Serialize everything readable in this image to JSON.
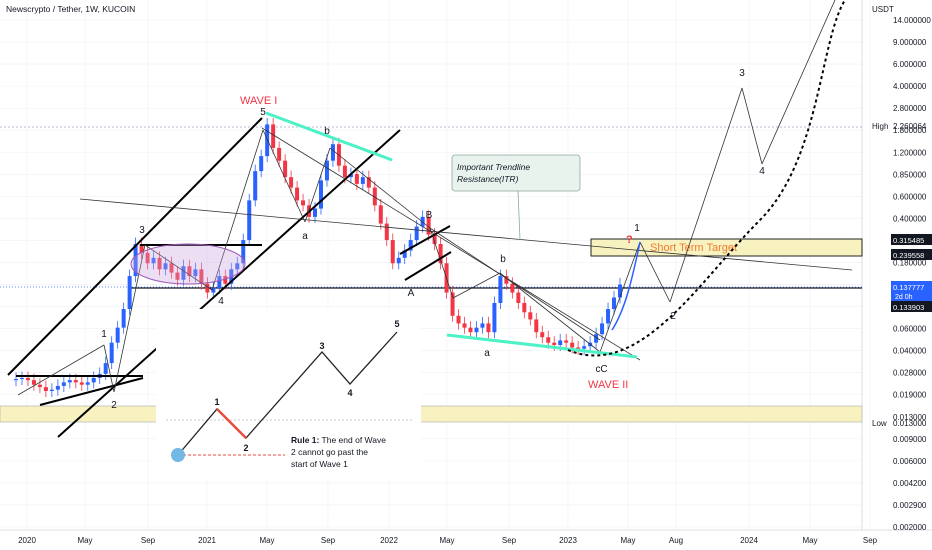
{
  "header": {
    "title": "Newscrypto / Tether, 1W, KUCOIN"
  },
  "colors": {
    "up": "#2962ff",
    "down": "#f23645",
    "accent_green": "#4cf2c6",
    "wave_red": "#f23645",
    "target_fill": "#f7f2c0",
    "target_border": "#222222",
    "price_tag_blue": "#2962ff",
    "dark_tag": "#131722",
    "itr_box": "#e9f3ee"
  },
  "axis": {
    "currency": "USDT",
    "scale": "log",
    "y_ticks": [
      "14.000000",
      "9.000000",
      "6.000000",
      "4.000000",
      "2.800000",
      "1.800000",
      "1.200000",
      "0.850000",
      "0.600000",
      "0.400000",
      "0.270000",
      "0.180000",
      "0.120000",
      "0.085000",
      "0.060000",
      "0.040000",
      "0.028000",
      "0.019000",
      "0.013000",
      "0.009000",
      "0.006000",
      "0.004200",
      "0.002900",
      "0.002000"
    ],
    "x_ticks": [
      "2020",
      "May",
      "Sep",
      "2021",
      "May",
      "Sep",
      "2022",
      "May",
      "Sep",
      "2023",
      "May",
      "Aug",
      "2024",
      "May",
      "Sep"
    ]
  },
  "price_tags": [
    {
      "label": "",
      "value": "0.315485",
      "style": "dark"
    },
    {
      "label": "",
      "value": "0.239558",
      "style": "dark"
    },
    {
      "label": "",
      "value": "0.137777",
      "sub": "2d 0h",
      "style": "blue"
    },
    {
      "label": "",
      "value": "0.133903",
      "style": "dark"
    },
    {
      "label": "High",
      "value": "2.260064",
      "style": "plain"
    },
    {
      "label": "Low",
      "value": "0.013000",
      "style": "plain"
    }
  ],
  "annotations": {
    "wave1_title": "WAVE I",
    "wave2_title": "WAVE II",
    "itr_text": "Important Trendline\nResistance(ITR)",
    "target_text": "Short Term Target",
    "question_mark": "?",
    "wave_labels": [
      "1",
      "2",
      "3",
      "4",
      "5",
      "a",
      "b",
      "A",
      "B",
      "a",
      "b",
      "c",
      "C",
      "1",
      "2",
      "3",
      "4"
    ]
  },
  "inset": {
    "labels": [
      "1",
      "2",
      "3",
      "4",
      "5"
    ],
    "rule_title": "Rule 1:",
    "rule_text": "The end of Wave 2 cannot go past the start of Wave 1"
  },
  "chart_data": {
    "type": "candlestick",
    "title": "Newscrypto / Tether, 1W, KUCOIN",
    "x_range": [
      "2019-12",
      "2024-10"
    ],
    "y_scale": "log",
    "y_range": [
      0.002,
      20
    ],
    "grid": true,
    "series": [
      {
        "name": "",
        "closes": [
          0.0265,
          0.027,
          0.026,
          0.024,
          0.023,
          0.0215,
          0.022,
          0.0235,
          0.025,
          0.026,
          0.025,
          0.024,
          0.025,
          0.027,
          0.029,
          0.035,
          0.05,
          0.065,
          0.09,
          0.16,
          0.28,
          0.24,
          0.2,
          0.22,
          0.18,
          0.2,
          0.17,
          0.15,
          0.19,
          0.16,
          0.18,
          0.14,
          0.12,
          0.13,
          0.16,
          0.14,
          0.18,
          0.2,
          0.3,
          0.6,
          1.0,
          1.3,
          2.26,
          1.5,
          1.2,
          0.9,
          0.75,
          0.6,
          0.55,
          0.45,
          0.52,
          0.85,
          1.2,
          1.6,
          1.1,
          0.9,
          0.95,
          0.8,
          0.9,
          0.75,
          0.55,
          0.4,
          0.3,
          0.2,
          0.22,
          0.25,
          0.3,
          0.38,
          0.45,
          0.33,
          0.28,
          0.2,
          0.12,
          0.08,
          0.07,
          0.065,
          0.06,
          0.065,
          0.07,
          0.06,
          0.1,
          0.16,
          0.14,
          0.12,
          0.1,
          0.085,
          0.075,
          0.06,
          0.055,
          0.05,
          0.048,
          0.052,
          0.05,
          0.046,
          0.045,
          0.047,
          0.05,
          0.058,
          0.07,
          0.09,
          0.11,
          0.138
        ]
      }
    ],
    "levels": {
      "high": 2.260064,
      "low": 0.013,
      "last": 0.137777,
      "target_top": 0.315485,
      "target_bottom": 0.239558
    }
  }
}
